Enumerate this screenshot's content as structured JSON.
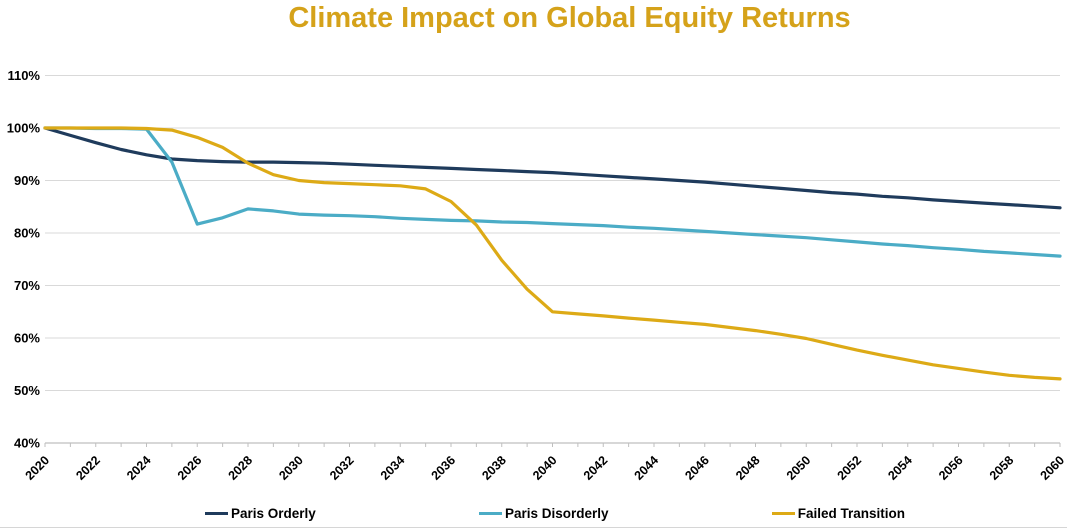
{
  "title": {
    "text": "Climate Impact on Global Equity Returns",
    "color": "#D5A21A"
  },
  "chart_data": {
    "type": "line",
    "title": "Climate Impact on Global Equity Returns",
    "xlabel": "",
    "ylabel": "",
    "grid": "horizontal",
    "gridline_color": "#D9D9D9",
    "axis_color": "#BFBFBF",
    "legend_position": "bottom",
    "xlim": [
      2020,
      2060
    ],
    "ylim": [
      40,
      110
    ],
    "x": [
      2020,
      2021,
      2022,
      2023,
      2024,
      2025,
      2026,
      2027,
      2028,
      2029,
      2030,
      2031,
      2032,
      2033,
      2034,
      2035,
      2036,
      2037,
      2038,
      2039,
      2040,
      2041,
      2042,
      2043,
      2044,
      2045,
      2046,
      2047,
      2048,
      2049,
      2050,
      2051,
      2052,
      2053,
      2054,
      2055,
      2056,
      2057,
      2058,
      2059,
      2060
    ],
    "xticks": [
      2020,
      2022,
      2024,
      2026,
      2028,
      2030,
      2032,
      2034,
      2036,
      2038,
      2040,
      2042,
      2044,
      2046,
      2048,
      2050,
      2052,
      2054,
      2056,
      2058,
      2060
    ],
    "yticks": {
      "values": [
        110,
        100,
        90,
        80,
        70,
        60,
        50,
        40
      ],
      "labels": [
        "110%",
        "100%",
        "90%",
        "80%",
        "70%",
        "60%",
        "50%",
        "40%"
      ]
    },
    "series": [
      {
        "name": "Paris Orderly",
        "color": "#1F3B5C",
        "values": [
          100.0,
          98.6,
          97.2,
          95.9,
          94.9,
          94.1,
          93.8,
          93.6,
          93.5,
          93.5,
          93.4,
          93.3,
          93.1,
          92.9,
          92.7,
          92.5,
          92.3,
          92.1,
          91.9,
          91.7,
          91.5,
          91.2,
          90.9,
          90.6,
          90.3,
          90.0,
          89.7,
          89.3,
          88.9,
          88.5,
          88.1,
          87.7,
          87.4,
          87.0,
          86.7,
          86.3,
          86.0,
          85.7,
          85.4,
          85.1,
          84.8
        ]
      },
      {
        "name": "Paris Disorderly",
        "color": "#4BACC6",
        "values": [
          100.0,
          100.0,
          99.9,
          99.9,
          99.8,
          93.5,
          81.7,
          82.9,
          84.6,
          84.2,
          83.6,
          83.4,
          83.3,
          83.1,
          82.8,
          82.6,
          82.4,
          82.3,
          82.1,
          82.0,
          81.8,
          81.6,
          81.4,
          81.1,
          80.9,
          80.6,
          80.3,
          80.0,
          79.7,
          79.4,
          79.1,
          78.7,
          78.3,
          77.9,
          77.6,
          77.2,
          76.9,
          76.5,
          76.2,
          75.9,
          75.6
        ]
      },
      {
        "name": "Failed Transition",
        "color": "#DDAA16",
        "values": [
          100.0,
          100.0,
          100.0,
          100.0,
          99.9,
          99.6,
          98.2,
          96.3,
          93.3,
          91.1,
          90.0,
          89.6,
          89.4,
          89.2,
          89.0,
          88.4,
          86.0,
          81.5,
          74.8,
          69.3,
          65.0,
          64.6,
          64.2,
          63.8,
          63.4,
          63.0,
          62.6,
          62.0,
          61.4,
          60.7,
          59.9,
          58.8,
          57.7,
          56.7,
          55.8,
          54.9,
          54.2,
          53.5,
          52.9,
          52.5,
          52.2
        ]
      }
    ]
  }
}
